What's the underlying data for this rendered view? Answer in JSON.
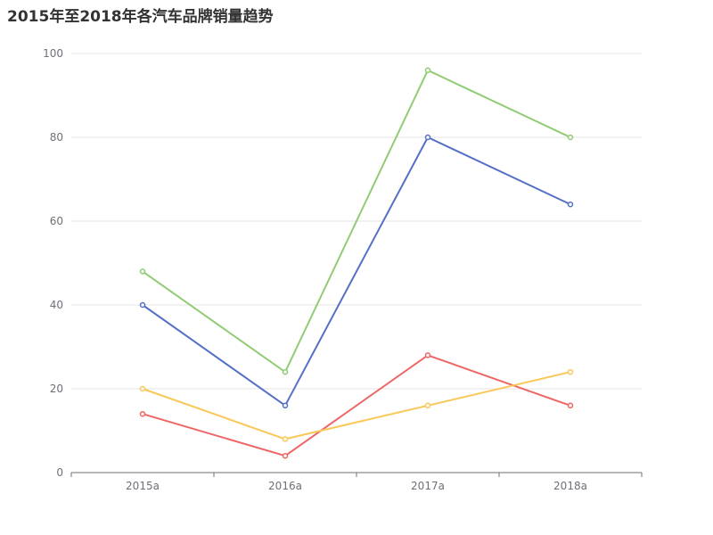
{
  "chart_data": {
    "type": "line",
    "title": "2015年至2018年各汽车品牌销量趋势",
    "categories": [
      "2015a",
      "2016a",
      "2017a",
      "2018a"
    ],
    "series": [
      {
        "color": "#91cc75",
        "values": [
          48,
          24,
          96,
          80
        ]
      },
      {
        "color": "#5470c6",
        "values": [
          40,
          16,
          80,
          64
        ]
      },
      {
        "color": "#ee6666",
        "values": [
          14,
          4,
          28,
          16
        ]
      },
      {
        "color": "#fac858",
        "values": [
          20,
          8,
          16,
          24
        ]
      }
    ],
    "xlabel": "",
    "ylabel": "",
    "ylim": [
      0,
      100
    ],
    "yticks": [
      "0",
      "20",
      "40",
      "60",
      "80",
      "100"
    ],
    "grid": true,
    "legend": "none"
  }
}
